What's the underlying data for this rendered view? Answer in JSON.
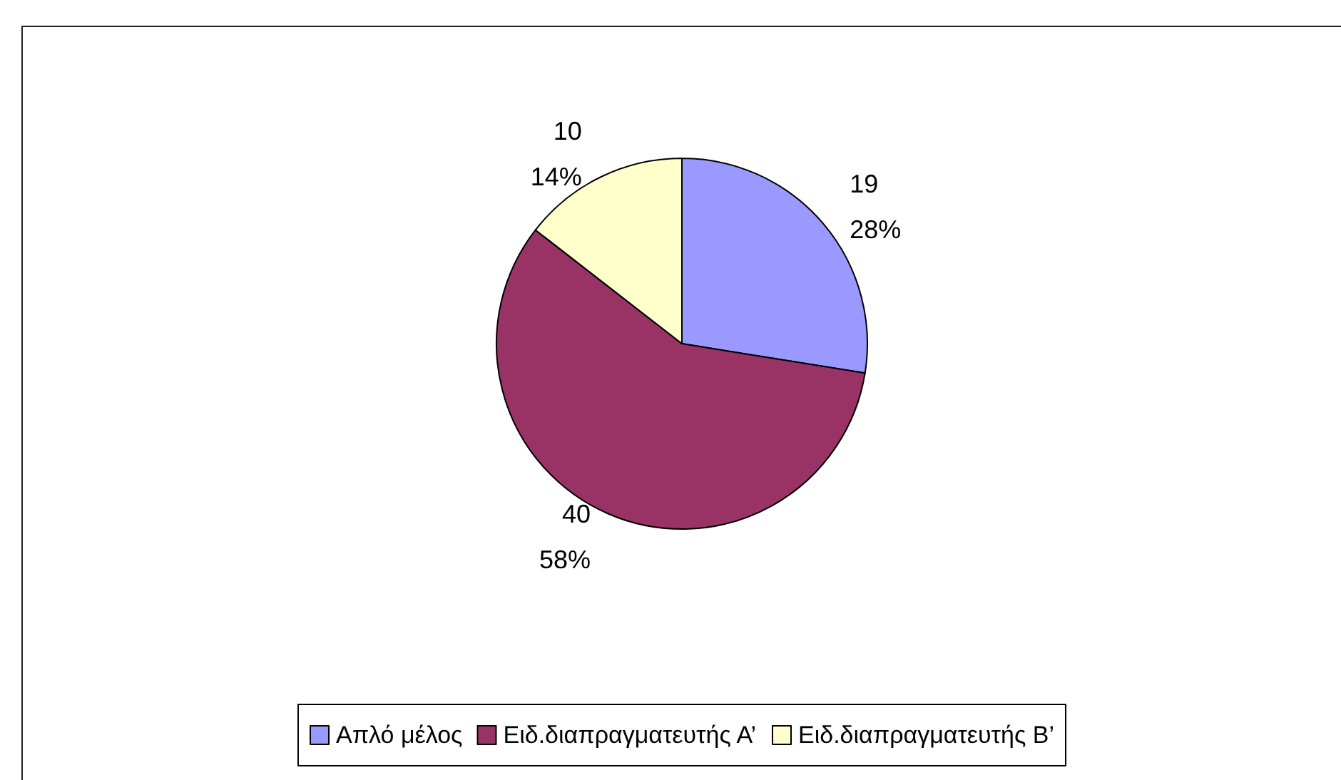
{
  "chart_data": {
    "type": "pie",
    "categories": [
      "Απλό μέλος",
      "Ειδ.διαπραγματευτής Α’",
      "Ειδ.διαπραγματευτής Β’"
    ],
    "values": [
      19,
      40,
      10
    ],
    "colors": [
      "#9999ff",
      "#993366",
      "#ffffcc"
    ],
    "value_labels": [
      "19\n28%",
      "40\n58%",
      "10\n14%"
    ],
    "legend": "bottom"
  }
}
